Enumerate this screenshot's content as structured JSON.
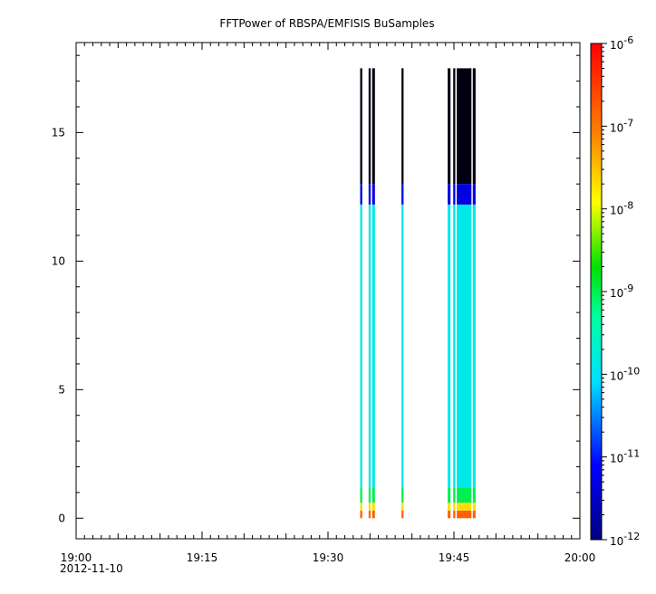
{
  "chart_data": {
    "type": "heatmap",
    "title": "FFTPower of RBSPA/EMFISIS  BuSamples",
    "xlabel": "",
    "ylabel": "",
    "x_date": "2012-11-10",
    "x_range": [
      "19:00",
      "20:00"
    ],
    "x_ticks": [
      "19:00",
      "19:15",
      "19:30",
      "19:45",
      "20:00"
    ],
    "y_range": [
      -0.8,
      18.5
    ],
    "y_ticks": [
      "0",
      "5",
      "10",
      "15"
    ],
    "colorbar": {
      "scale": "log",
      "range": [
        1e-12,
        1e-06
      ],
      "tick_bases": [
        "10",
        "10",
        "10",
        "10",
        "10",
        "10",
        "10"
      ],
      "tick_exponents": [
        "-12",
        "-11",
        "-10",
        "-9",
        "-8",
        "-7",
        "-6"
      ]
    },
    "stripes": [
      {
        "start": "19:33:50",
        "end": "19:34:05"
      },
      {
        "start": "19:34:50",
        "end": "19:35:05"
      },
      {
        "start": "19:35:15",
        "end": "19:35:35"
      },
      {
        "start": "19:38:45",
        "end": "19:39:00"
      },
      {
        "start": "19:44:15",
        "end": "19:44:35"
      },
      {
        "start": "19:44:55",
        "end": "19:45:10"
      },
      {
        "start": "19:45:20",
        "end": "19:47:05"
      },
      {
        "start": "19:47:15",
        "end": "19:47:35"
      }
    ],
    "spectrum_profile": [
      {
        "f_from": 0.0,
        "f_to": 0.3,
        "power": 1.5e-07
      },
      {
        "f_from": 0.3,
        "f_to": 0.6,
        "power": 2e-08
      },
      {
        "f_from": 0.6,
        "f_to": 1.2,
        "power": 1e-09
      },
      {
        "f_from": 1.2,
        "f_to": 12.2,
        "power": 1.3e-10
      },
      {
        "f_from": 12.2,
        "f_to": 13.0,
        "power": 5e-12
      },
      {
        "f_from": 13.0,
        "f_to": 17.5,
        "power": 1e-12
      }
    ],
    "grid": false
  }
}
